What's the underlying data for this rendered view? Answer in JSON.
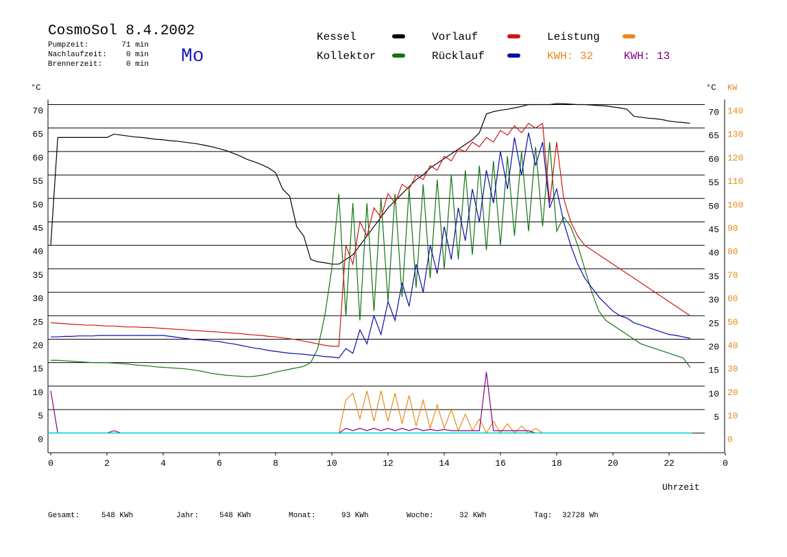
{
  "chart_data": {
    "type": "line",
    "title": "CosmoSol 8.4.2002",
    "day": "Mo",
    "info": [
      {
        "label": "Pumpzeit:",
        "value": "71 min"
      },
      {
        "label": "Nachlaufzeit:",
        "value": "0 min"
      },
      {
        "label": "Brennerzeit:",
        "value": "0 min"
      }
    ],
    "annotations": [
      {
        "text": "KWH: 32",
        "color": "#e8891c"
      },
      {
        "text": "KWH: 13",
        "color": "#800080"
      }
    ],
    "y_unit": "°C",
    "y2_unit": "KW",
    "xlabel": "Uhrzeit",
    "footer": [
      {
        "label": "Gesamt:",
        "value": "548 KWh"
      },
      {
        "label": "Jahr:",
        "value": "548 KWh"
      },
      {
        "label": "Monat:",
        "value": "93 KWh"
      },
      {
        "label": "Woche:",
        "value": "32 KWh"
      },
      {
        "label": "Tag:",
        "value": "32728 Wh"
      }
    ],
    "xlim": [
      0,
      24
    ],
    "xticks": [
      0,
      2,
      4,
      6,
      8,
      10,
      12,
      14,
      16,
      18,
      20,
      22,
      {
        "value": 24,
        "label": "0"
      }
    ],
    "ylim": [
      -4.2,
      72
    ],
    "yticks": [
      0,
      5,
      10,
      15,
      20,
      25,
      30,
      35,
      40,
      45,
      50,
      55,
      60,
      65,
      70
    ],
    "y2lim": [
      -8.4,
      144
    ],
    "y2ticks": [
      0,
      10,
      20,
      30,
      40,
      50,
      60,
      70,
      80,
      90,
      100,
      110,
      120,
      130,
      140
    ],
    "grid": true,
    "x": [
      0,
      0.25,
      0.5,
      0.75,
      1,
      1.25,
      1.5,
      1.75,
      2,
      2.25,
      2.5,
      2.75,
      3,
      3.25,
      3.5,
      3.75,
      4,
      4.25,
      4.5,
      4.75,
      5,
      5.25,
      5.5,
      5.75,
      6,
      6.25,
      6.5,
      6.75,
      7,
      7.25,
      7.5,
      7.75,
      8,
      8.25,
      8.5,
      8.75,
      9,
      9.25,
      9.5,
      9.75,
      10,
      10.25,
      10.5,
      10.75,
      11,
      11.25,
      11.5,
      11.75,
      12,
      12.25,
      12.5,
      12.75,
      13,
      13.25,
      13.5,
      13.75,
      14,
      14.25,
      14.5,
      14.75,
      15,
      15.25,
      15.5,
      15.75,
      16,
      16.25,
      16.5,
      16.75,
      17,
      17.25,
      17.5,
      17.75,
      18,
      18.25,
      18.5,
      18.75,
      19,
      19.25,
      19.5,
      19.75,
      20,
      20.25,
      20.5,
      20.75,
      21,
      21.25,
      21.5,
      21.75,
      22,
      22.25,
      22.5,
      22.75
    ],
    "series": [
      {
        "name": "Kessel",
        "color": "#000000",
        "values": [
          40,
          63,
          63,
          63,
          63,
          63,
          63,
          63,
          63,
          63.7,
          63.5,
          63.3,
          63.1,
          63,
          62.8,
          62.6,
          62.5,
          62.3,
          62.2,
          62,
          61.8,
          61.6,
          61.3,
          61,
          60.6,
          60.2,
          59.6,
          59,
          58.3,
          57.8,
          57.2,
          56.5,
          55.5,
          52,
          50.5,
          44,
          42,
          37,
          36.5,
          36.3,
          36,
          36,
          37,
          38,
          40,
          42,
          44,
          46,
          48,
          49.5,
          51,
          52.5,
          54,
          55,
          56.5,
          57.5,
          58.5,
          59.5,
          60.5,
          61.5,
          62.5,
          64,
          68,
          68.5,
          68.8,
          69,
          69.3,
          69.6,
          70,
          70,
          70,
          70,
          70.2,
          70.2,
          70.1,
          70,
          70,
          69.9,
          69.8,
          69.7,
          69.5,
          69.3,
          69,
          67.5,
          67.3,
          67.1,
          67,
          66.8,
          66.5,
          66.3,
          66.2,
          66
        ]
      },
      {
        "name": "Kollektor",
        "color": "#137313",
        "values": [
          15.5,
          15.5,
          15.4,
          15.3,
          15.2,
          15.1,
          15,
          15,
          15,
          14.9,
          14.8,
          14.7,
          14.5,
          14.4,
          14.3,
          14.1,
          14,
          13.9,
          13.8,
          13.7,
          13.5,
          13.3,
          13,
          12.7,
          12.5,
          12.3,
          12.2,
          12.1,
          12,
          12.1,
          12.3,
          12.6,
          13,
          13.3,
          13.6,
          13.9,
          14.2,
          15,
          18,
          25,
          35,
          51,
          25,
          49,
          24,
          49,
          26,
          50,
          28,
          51,
          29,
          52,
          31,
          53,
          33,
          54,
          35,
          55,
          37,
          56,
          38,
          57,
          39,
          58,
          40,
          59,
          42,
          60,
          43,
          61,
          44,
          62,
          43,
          46,
          44,
          40,
          35,
          30,
          26,
          24,
          23,
          22,
          21,
          20,
          19,
          18.5,
          18,
          17.5,
          17,
          16.5,
          16,
          14
        ]
      },
      {
        "name": "Vorlauf",
        "color": "#d01515",
        "values": [
          23.5,
          23.4,
          23.3,
          23.2,
          23.1,
          23,
          23,
          22.9,
          22.8,
          22.8,
          22.7,
          22.6,
          22.6,
          22.5,
          22.5,
          22.4,
          22.3,
          22.2,
          22.1,
          22,
          21.9,
          21.8,
          21.7,
          21.6,
          21.5,
          21.4,
          21.3,
          21.2,
          21,
          20.9,
          20.8,
          20.6,
          20.5,
          20.3,
          20.1,
          19.9,
          19.6,
          19.3,
          19,
          18.7,
          18.5,
          18.5,
          40,
          36,
          45,
          42,
          48,
          46,
          51,
          49,
          53,
          52,
          55,
          54,
          57,
          56,
          59,
          58,
          60.5,
          60,
          62,
          61,
          63,
          62,
          64.5,
          63.5,
          65.5,
          64,
          66,
          65,
          66,
          49,
          62,
          50,
          45,
          42,
          40,
          39,
          38,
          37,
          36,
          35,
          34,
          33,
          32,
          31,
          30,
          29,
          28,
          27,
          26,
          25
        ]
      },
      {
        "name": "Rücklauf",
        "color": "#0c0ca8",
        "values": [
          20.5,
          20.5,
          20.6,
          20.6,
          20.7,
          20.7,
          20.7,
          20.8,
          20.8,
          20.8,
          20.8,
          20.8,
          20.8,
          20.8,
          20.8,
          20.8,
          20.8,
          20.6,
          20.4,
          20.2,
          20,
          19.9,
          19.8,
          19.6,
          19.5,
          19.2,
          19,
          18.7,
          18.4,
          18.1,
          17.9,
          17.6,
          17.4,
          17.2,
          17,
          16.9,
          16.8,
          16.6,
          16.5,
          16.3,
          16.2,
          16,
          18,
          17,
          22,
          19,
          25,
          21,
          28,
          24,
          32,
          27,
          36,
          30,
          40,
          34,
          44,
          37,
          48,
          41,
          52,
          45,
          56,
          49,
          60,
          52,
          63,
          55,
          64,
          57,
          62,
          48,
          52,
          45,
          40,
          36,
          33,
          31,
          29,
          27.5,
          26,
          25,
          24.5,
          23.5,
          23,
          22.5,
          22,
          21.5,
          21,
          20.8,
          20.5,
          20.2
        ]
      },
      {
        "name": "Leistung",
        "color": "#e8891c",
        "axis": "y2",
        "values": [
          0,
          0,
          0,
          0,
          0,
          0,
          0,
          0,
          0,
          0,
          0,
          0,
          0,
          0,
          0,
          0,
          0,
          0,
          0,
          0,
          0,
          0,
          0,
          0,
          0,
          0,
          0,
          0,
          0,
          0,
          0,
          0,
          0,
          0,
          0,
          0,
          0,
          0,
          0,
          0,
          0,
          0,
          14,
          17,
          6,
          18,
          5,
          18,
          5,
          17,
          4,
          16,
          3,
          14,
          2,
          12,
          2,
          10,
          1,
          8,
          1,
          6,
          0,
          5,
          0,
          4,
          0,
          3,
          0,
          2,
          0,
          0,
          0,
          0,
          0,
          0,
          0,
          0,
          0,
          0,
          0,
          0,
          0,
          0,
          0,
          0,
          0,
          0,
          0,
          0,
          0,
          0
        ]
      },
      {
        "color": "#800080",
        "axis": "y2",
        "values": [
          18,
          0,
          0,
          0,
          0,
          0,
          0,
          0,
          0,
          1,
          0,
          0,
          0,
          0,
          0,
          0,
          0,
          0,
          0,
          0,
          0,
          0,
          0,
          0,
          0,
          0,
          0,
          0,
          0,
          0,
          0,
          0,
          0,
          0,
          0,
          0,
          0,
          0,
          0,
          0,
          0,
          0,
          2,
          1,
          2,
          1,
          2,
          1,
          2,
          1,
          2,
          1,
          2,
          1,
          1.5,
          1,
          1.5,
          1,
          1,
          1,
          1,
          1,
          26,
          1,
          1,
          1,
          1,
          1,
          1,
          0,
          0,
          0,
          0,
          0,
          0,
          0,
          0,
          0,
          0,
          0,
          0,
          0,
          0,
          0,
          0,
          0,
          0,
          0,
          0,
          0,
          0,
          0
        ]
      }
    ],
    "zero_line_color": "#00d0d0"
  }
}
